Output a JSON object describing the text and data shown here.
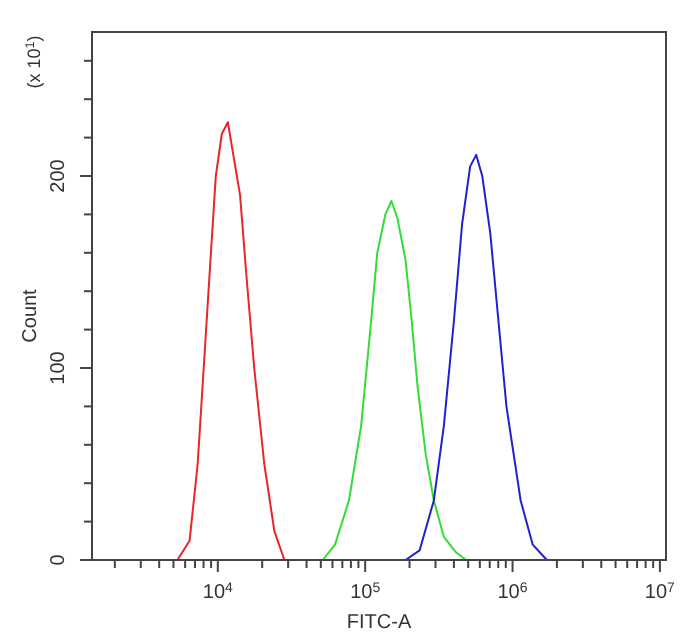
{
  "chart_data": {
    "type": "line",
    "xlabel": "FITC-A",
    "ylabel": "Count",
    "annotations": [
      "(x 10$^{1}$)"
    ],
    "log": "x",
    "grid": false,
    "marker": "none",
    "line_style": "solid",
    "xlim": [
      1400,
      11000000
    ],
    "ylim": [
      0,
      275
    ],
    "xticks": [
      {
        "value": 2000,
        "label": null
      },
      {
        "value": 3000,
        "label": null
      },
      {
        "value": 4000,
        "label": null
      },
      {
        "value": 5000,
        "label": null
      },
      {
        "value": 6000,
        "label": null
      },
      {
        "value": 7000,
        "label": null
      },
      {
        "value": 8000,
        "label": null
      },
      {
        "value": 9000,
        "label": null
      },
      {
        "value": 10000,
        "label": "10$^{4}$"
      },
      {
        "value": 20000,
        "label": null
      },
      {
        "value": 30000,
        "label": null
      },
      {
        "value": 40000,
        "label": null
      },
      {
        "value": 50000,
        "label": null
      },
      {
        "value": 60000,
        "label": null
      },
      {
        "value": 70000,
        "label": null
      },
      {
        "value": 80000,
        "label": null
      },
      {
        "value": 90000,
        "label": null
      },
      {
        "value": 100000,
        "label": "10$^{5}$"
      },
      {
        "value": 200000,
        "label": null
      },
      {
        "value": 300000,
        "label": null
      },
      {
        "value": 400000,
        "label": null
      },
      {
        "value": 500000,
        "label": null
      },
      {
        "value": 600000,
        "label": null
      },
      {
        "value": 700000,
        "label": null
      },
      {
        "value": 800000,
        "label": null
      },
      {
        "value": 900000,
        "label": null
      },
      {
        "value": 1000000,
        "label": "10$^{6}$"
      },
      {
        "value": 2000000,
        "label": null
      },
      {
        "value": 3000000,
        "label": null
      },
      {
        "value": 4000000,
        "label": null
      },
      {
        "value": 5000000,
        "label": null
      },
      {
        "value": 6000000,
        "label": null
      },
      {
        "value": 7000000,
        "label": null
      },
      {
        "value": 8000000,
        "label": null
      },
      {
        "value": 9000000,
        "label": null
      },
      {
        "value": 10000000,
        "label": "10$^{7}$"
      }
    ],
    "yticks": [
      0,
      {
        "value": 20,
        "label": null
      },
      {
        "value": 40,
        "label": null
      },
      {
        "value": 60,
        "label": null
      },
      {
        "value": 80,
        "label": null
      },
      100,
      {
        "value": 120,
        "label": null
      },
      {
        "value": 140,
        "label": null
      },
      {
        "value": 160,
        "label": null
      },
      {
        "value": 180,
        "label": null
      },
      200,
      {
        "value": 220,
        "label": null
      },
      {
        "value": 240,
        "label": null
      },
      {
        "value": 260,
        "label": null
      }
    ],
    "series": [
      {
        "color": "#e8262a",
        "x": [
          5320,
          6430,
          7300,
          8020,
          8810,
          9690,
          10650,
          11700,
          12480,
          14160,
          15560,
          17660,
          20670,
          24200,
          28300
        ],
        "values": [
          0,
          10,
          50,
          100,
          150,
          200,
          222,
          228,
          215,
          190,
          150,
          100,
          50,
          15,
          0
        ]
      },
      {
        "color": "#33dd33",
        "x": [
          51500,
          62400,
          77600,
          93900,
          109900,
          120800,
          137100,
          150700,
          165500,
          188000,
          206600,
          227000,
          257600,
          292400,
          342000,
          413000,
          484000
        ],
        "values": [
          0,
          8,
          31,
          70,
          125,
          160,
          180,
          187,
          178,
          156,
          125,
          90,
          55,
          31,
          12,
          4,
          0
        ]
      },
      {
        "color": "#2222cc",
        "x": [
          188000,
          234000,
          292400,
          342000,
          400600,
          454700,
          515600,
          566700,
          623100,
          706800,
          801000,
          909000,
          1135000,
          1371000,
          1710000
        ],
        "values": [
          0,
          5,
          31,
          70,
          125,
          175,
          205,
          211,
          200,
          170,
          125,
          80,
          31,
          8,
          0
        ]
      }
    ]
  }
}
